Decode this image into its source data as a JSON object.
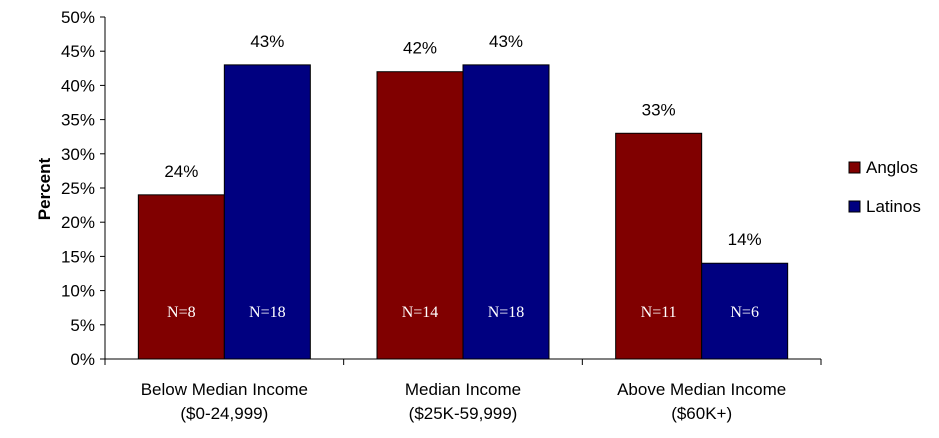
{
  "chart_data": {
    "type": "bar",
    "categories": [
      [
        "Below Median Income",
        "($0-24,999)"
      ],
      [
        "Median Income",
        "($25K-59,999)"
      ],
      [
        "Above Median Income",
        "($60K+)"
      ]
    ],
    "series": [
      {
        "name": "Anglos",
        "color": "#800000",
        "values": [
          24,
          42,
          33
        ],
        "value_labels": [
          "24%",
          "42%",
          "33%"
        ],
        "n_labels": [
          "N=8",
          "N=14",
          "N=11"
        ]
      },
      {
        "name": "Latinos",
        "color": "#000080",
        "values": [
          43,
          43,
          14
        ],
        "value_labels": [
          "43%",
          "43%",
          "14%"
        ],
        "n_labels": [
          "N=18",
          "N=18",
          "N=6"
        ]
      }
    ],
    "ylabel": "Percent",
    "xlabel": "",
    "title": "",
    "ylim": [
      0,
      50
    ],
    "yticks": [
      0,
      5,
      10,
      15,
      20,
      25,
      30,
      35,
      40,
      45,
      50
    ],
    "ytick_labels": [
      "0%",
      "5%",
      "10%",
      "15%",
      "20%",
      "25%",
      "30%",
      "35%",
      "40%",
      "45%",
      "50%"
    ],
    "grid": false,
    "legend_position": "right"
  }
}
